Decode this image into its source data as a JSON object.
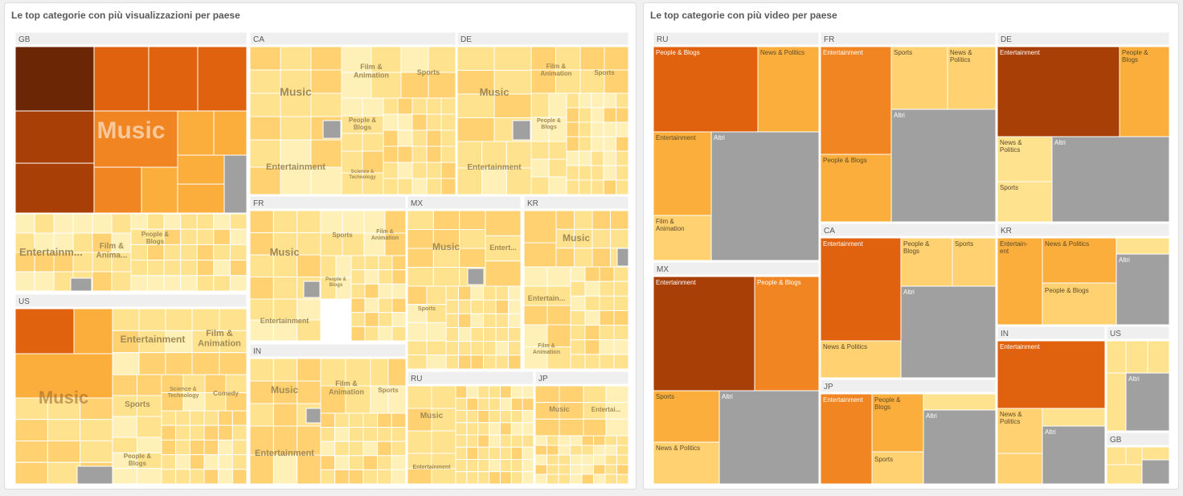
{
  "chart_data": [
    {
      "type": "treemap",
      "title": "Le top categorie con più visualizzazioni per paese",
      "groups": [
        {
          "country": "GB",
          "labels": [
            "Music",
            "Entertainm...",
            "Film & Anima...",
            "People & Blogs"
          ]
        },
        {
          "country": "CA",
          "labels": [
            "Music",
            "Film & Animation",
            "Sports",
            "People & Blogs",
            "Entertainment",
            "Science & Technology"
          ]
        },
        {
          "country": "DE",
          "labels": [
            "Music",
            "Film & Animation",
            "Sports",
            "People & Blogs",
            "Entertainment"
          ]
        },
        {
          "country": "US",
          "labels": [
            "Music",
            "Entertainment",
            "Film & Animation",
            "Sports",
            "Science & Technology",
            "Comedy",
            "People & Blogs"
          ]
        },
        {
          "country": "FR",
          "labels": [
            "Music",
            "Sports",
            "Film & Animation",
            "People & Blogs",
            "Entertainment"
          ]
        },
        {
          "country": "MX",
          "labels": [
            "Music",
            "Entert...",
            "Sports",
            "Entertainment"
          ]
        },
        {
          "country": "KR",
          "labels": [
            "Music",
            "Entertain...",
            "Film & Animation"
          ]
        },
        {
          "country": "IN",
          "labels": [
            "Music",
            "Film & Animation",
            "Sports",
            "Entertainment"
          ]
        },
        {
          "country": "RU",
          "labels": [
            "Music",
            "Entertainment"
          ]
        },
        {
          "country": "JP",
          "labels": [
            "Music",
            "Entertai..."
          ]
        }
      ]
    },
    {
      "type": "treemap",
      "title": "Le top categorie con più video per paese",
      "groups": [
        {
          "country": "RU",
          "labels": [
            "People & Blogs",
            "News & Politics",
            "Entertainment",
            "Altri",
            "Film & Animation"
          ]
        },
        {
          "country": "FR",
          "labels": [
            "Entertainment",
            "Sports",
            "News & Politics",
            "Altri",
            "People & Blogs"
          ]
        },
        {
          "country": "DE",
          "labels": [
            "Entertainment",
            "People & Blogs",
            "News & Politics",
            "Altri",
            "Sports"
          ]
        },
        {
          "country": "MX",
          "labels": [
            "Entertainment",
            "People & Blogs",
            "Sports",
            "Altri",
            "News & Politics"
          ]
        },
        {
          "country": "CA",
          "labels": [
            "Entertainment",
            "People & Blogs",
            "Sports",
            "Altri",
            "News & Politics"
          ]
        },
        {
          "country": "KR",
          "labels": [
            "Entertain-ent",
            "News & Politics",
            "People & Blogs",
            "Altri"
          ]
        },
        {
          "country": "IN",
          "labels": [
            "Entertainment",
            "News & Politics",
            "Altri"
          ]
        },
        {
          "country": "US",
          "labels": [
            "Altri"
          ]
        },
        {
          "country": "GB",
          "labels": []
        },
        {
          "country": "JP",
          "labels": [
            "Entertainment",
            "People & Blogs",
            "Altri",
            "Sports"
          ]
        }
      ]
    }
  ],
  "colors": {
    "darkest": "#6b2606",
    "dark": "#a83f06",
    "orange": "#e0610e",
    "mid": "#f08522",
    "amber": "#fbae3b",
    "light": "#ffd170",
    "pale": "#ffe28e",
    "palest": "#fff0b8",
    "altri": "#a0a0a0",
    "header": "#efefef"
  }
}
